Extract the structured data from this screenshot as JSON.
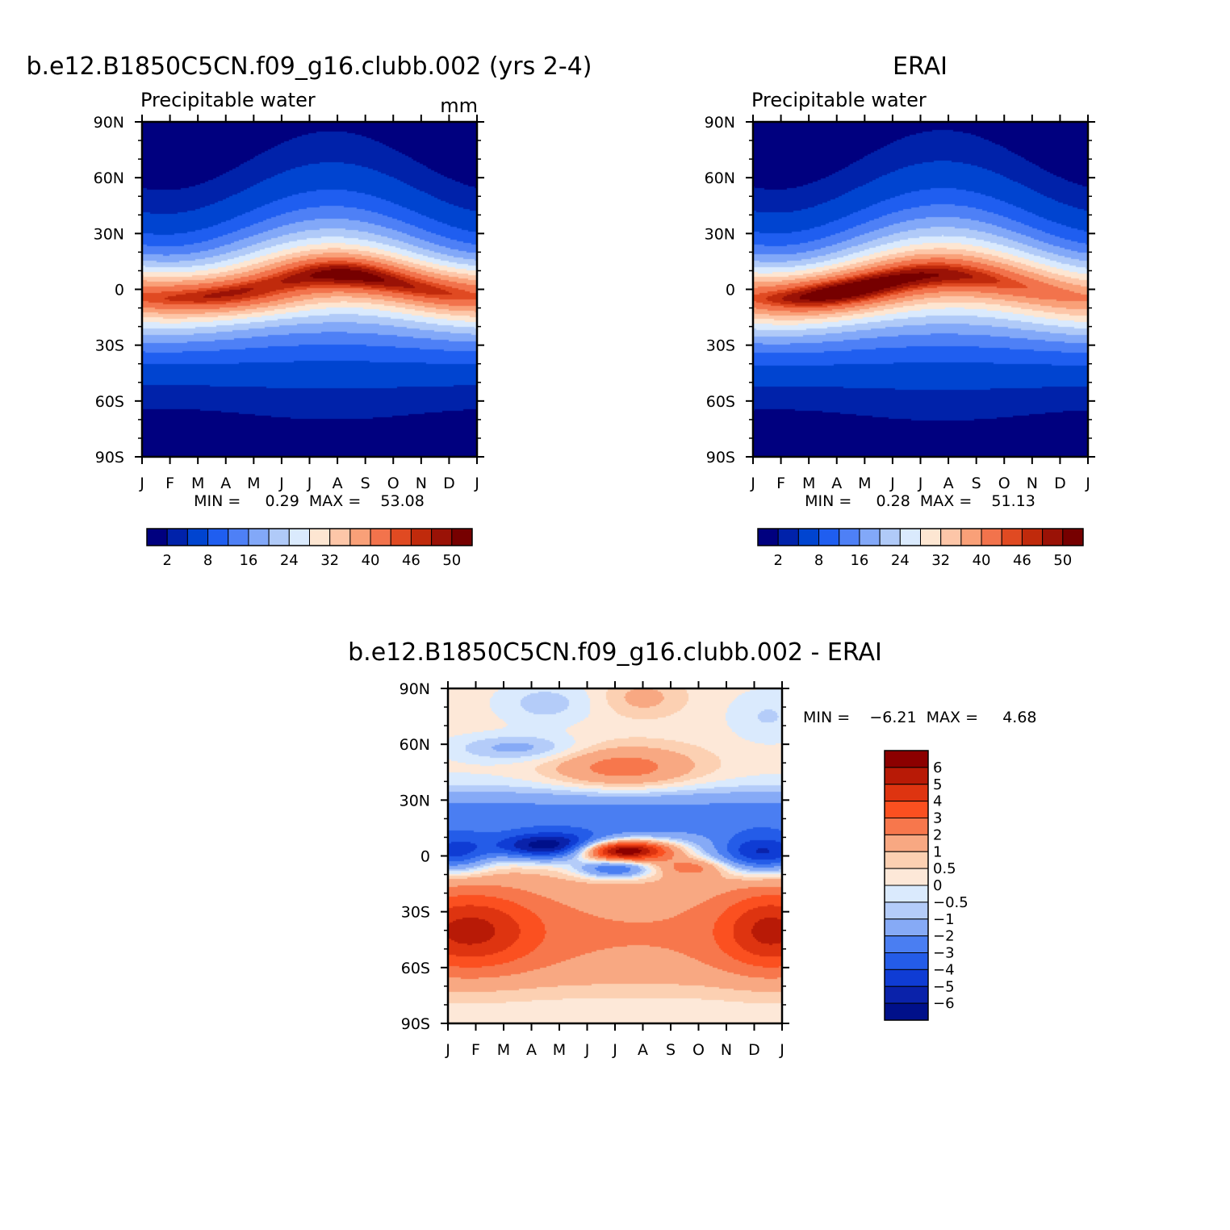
{
  "chart_data": [
    {
      "type": "heatmap",
      "title": "b.e12.B1850C5CN.f09_g16.clubb.002 (yrs 2-4)",
      "subtitle": "Precipitable water",
      "units": "mm",
      "x_ticks": [
        "J",
        "F",
        "M",
        "A",
        "M",
        "J",
        "J",
        "A",
        "S",
        "O",
        "N",
        "D",
        "J"
      ],
      "y_ticks": [
        "90N",
        "60N",
        "30N",
        "0",
        "30S",
        "60S",
        "90S"
      ],
      "ylim": [
        -90,
        90
      ],
      "xlim": [
        0,
        12
      ],
      "stats_text": "MIN =     0.29  MAX =    53.08",
      "min": 0.29,
      "max": 53.08,
      "colorbar_labels": [
        "2",
        "8",
        "16",
        "24",
        "32",
        "40",
        "46",
        "50"
      ],
      "colorbar_colors": [
        "#00007f",
        "#0022aa",
        "#0044d0",
        "#1f5ef0",
        "#4e80f6",
        "#82a8f8",
        "#b0caf8",
        "#daeafd",
        "#fde6d2",
        "#fdc6a8",
        "#f9a078",
        "#f2734c",
        "#e04a22",
        "#c02a0c",
        "#9a1206",
        "#760000"
      ],
      "colorbar_levels": [
        0,
        2,
        4,
        8,
        12,
        16,
        20,
        24,
        28,
        32,
        36,
        40,
        44,
        46,
        48,
        50,
        52
      ],
      "field": "pw_model"
    },
    {
      "type": "heatmap",
      "title": "ERAI",
      "subtitle": "Precipitable water",
      "x_ticks": [
        "J",
        "F",
        "M",
        "A",
        "M",
        "J",
        "J",
        "A",
        "S",
        "O",
        "N",
        "D",
        "J"
      ],
      "y_ticks": [
        "90N",
        "60N",
        "30N",
        "0",
        "30S",
        "60S",
        "90S"
      ],
      "ylim": [
        -90,
        90
      ],
      "xlim": [
        0,
        12
      ],
      "stats_text": "MIN =     0.28  MAX =    51.13",
      "min": 0.28,
      "max": 51.13,
      "colorbar_labels": [
        "2",
        "8",
        "16",
        "24",
        "32",
        "40",
        "46",
        "50"
      ],
      "colorbar_colors": [
        "#00007f",
        "#0022aa",
        "#0044d0",
        "#1f5ef0",
        "#4e80f6",
        "#82a8f8",
        "#b0caf8",
        "#daeafd",
        "#fde6d2",
        "#fdc6a8",
        "#f9a078",
        "#f2734c",
        "#e04a22",
        "#c02a0c",
        "#9a1206",
        "#760000"
      ],
      "colorbar_levels": [
        0,
        2,
        4,
        8,
        12,
        16,
        20,
        24,
        28,
        32,
        36,
        40,
        44,
        46,
        48,
        50,
        52
      ],
      "field": "pw_obs"
    },
    {
      "type": "heatmap",
      "title": "b.e12.B1850C5CN.f09_g16.clubb.002 - ERAI",
      "x_ticks": [
        "J",
        "F",
        "M",
        "A",
        "M",
        "J",
        "J",
        "A",
        "S",
        "O",
        "N",
        "D",
        "J"
      ],
      "y_ticks": [
        "90N",
        "60N",
        "30N",
        "0",
        "30S",
        "60S",
        "90S"
      ],
      "ylim": [
        -90,
        90
      ],
      "xlim": [
        0,
        12
      ],
      "stats_text": "MIN =    −6.21  MAX =     4.68",
      "min": -6.21,
      "max": 4.68,
      "colorbar_labels": [
        "6",
        "5",
        "4",
        "3",
        "2",
        "1",
        "0.5",
        "0",
        "−0.5",
        "−1",
        "−2",
        "−3",
        "−4",
        "−5",
        "−6"
      ],
      "colorbar_colors": [
        "#8c0000",
        "#b81a06",
        "#de3410",
        "#fb5020",
        "#f7774c",
        "#f8a882",
        "#fcd0b2",
        "#fde8d8",
        "#daeafd",
        "#b4ccf9",
        "#86aaf6",
        "#4a7ef2",
        "#245ce8",
        "#0f3cd4",
        "#0a22aa",
        "#00108a"
      ],
      "colorbar_levels": [
        7,
        6,
        5,
        4,
        3,
        2,
        1,
        0.5,
        0,
        -0.5,
        -1,
        -2,
        -3,
        -4,
        -5,
        -6,
        -7
      ],
      "field": "pw_diff"
    }
  ]
}
